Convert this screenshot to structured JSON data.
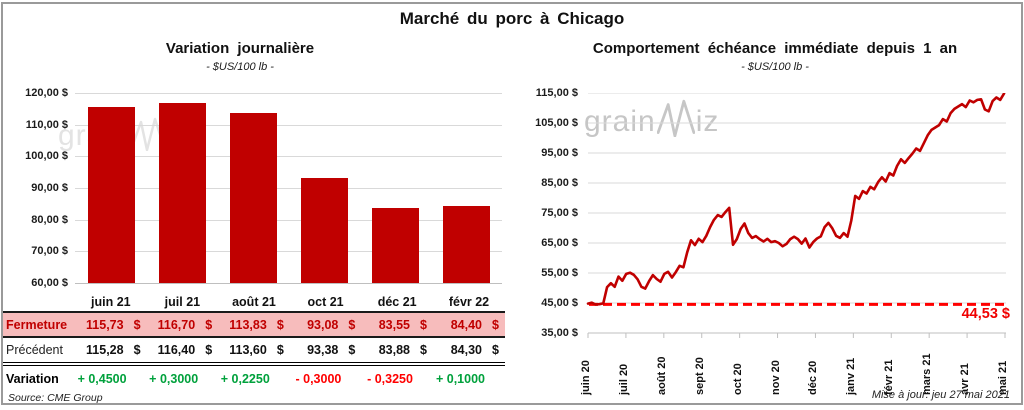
{
  "title": "Marché du porc à Chicago",
  "source": "Source: CME Group",
  "updated": "Mise à jour: jeu 27 mai 2021",
  "watermark": {
    "part1": "grain",
    "part2": "iz"
  },
  "colors": {
    "bar": "#c00000",
    "line": "#c00000",
    "reference_dash": "#ff0000",
    "reference_label": "#f00000",
    "positive": "#00a13c",
    "negative": "#ff0000",
    "fermeture_bg": "#f7bcbc",
    "fermeture_text": "#c00000",
    "grid": "#d9d9d9",
    "axis": "#bfbfbf",
    "frame": "#9a9a9a"
  },
  "chart_data": [
    {
      "type": "bar",
      "title": "Variation journalière",
      "subtitle": "- $US/100 lb -",
      "categories": [
        "juin 21",
        "juil 21",
        "août 21",
        "oct 21",
        "déc 21",
        "févr 22"
      ],
      "values": [
        115.73,
        116.7,
        113.83,
        93.08,
        83.55,
        84.4
      ],
      "ylim": [
        60,
        120
      ],
      "y_ticks": [
        "120,00 $",
        "110,00 $",
        "100,00 $",
        "90,00 $",
        "80,00 $",
        "70,00 $",
        "60,00 $"
      ],
      "grid": true,
      "legend": false
    },
    {
      "type": "line",
      "title": "Comportement échéance immédiate depuis 1 an",
      "subtitle": "- $US/100 lb -",
      "x_ticks": [
        "juin 20",
        "juil 20",
        "août 20",
        "sept 20",
        "oct 20",
        "nov 20",
        "déc 20",
        "janv 21",
        "févr 21",
        "mars 21",
        "avr 21",
        "mai 21"
      ],
      "values": [
        44.8,
        45.1,
        44.5,
        44.6,
        44.9,
        50.3,
        51.6,
        50.4,
        53.8,
        52.4,
        54.7,
        55.1,
        54.4,
        52.9,
        50.4,
        49.8,
        52.3,
        54.3,
        53.0,
        52.1,
        54.7,
        55.4,
        53.5,
        55.3,
        57.4,
        56.9,
        61.9,
        65.9,
        64.3,
        66.4,
        65.3,
        67.4,
        70.3,
        72.7,
        74.3,
        73.7,
        75.3,
        76.7,
        64.4,
        66.3,
        69.7,
        71.5,
        68.3,
        66.7,
        67.3,
        66.3,
        65.5,
        66.4,
        65.3,
        65.6,
        65.0,
        63.9,
        64.7,
        66.3,
        67.1,
        66.3,
        64.8,
        66.5,
        63.5,
        65.3,
        66.5,
        67.2,
        70.3,
        71.7,
        69.9,
        67.4,
        66.7,
        68.3,
        67.1,
        72.5,
        80.7,
        79.7,
        82.3,
        81.5,
        83.7,
        82.9,
        85.3,
        86.9,
        85.5,
        88.3,
        87.5,
        90.7,
        92.9,
        91.7,
        93.3,
        94.8,
        96.5,
        95.7,
        98.3,
        100.9,
        102.7,
        103.5,
        104.3,
        106.3,
        105.5,
        108.3,
        109.7,
        110.5,
        111.3,
        110.3,
        112.5,
        111.9,
        112.7,
        112.9,
        109.5,
        108.9,
        112.3,
        113.5,
        112.7,
        114.8
      ],
      "ylim": [
        35,
        115
      ],
      "y_ticks": [
        "115,00 $",
        "105,00 $",
        "95,00 $",
        "85,00 $",
        "75,00 $",
        "65,00 $",
        "55,00 $",
        "45,00 $",
        "35,00 $"
      ],
      "reference_line": {
        "value": 44.53,
        "label": "44,53 $"
      },
      "grid": true,
      "legend": false
    },
    {
      "type": "table",
      "columns": [
        "juin 21",
        "juil 21",
        "août 21",
        "oct 21",
        "déc 21",
        "févr 22"
      ],
      "rows": [
        {
          "label": "Fermeture",
          "style": "fermeture",
          "currency": "$",
          "values": [
            "115,73",
            "116,70",
            "113,83",
            "93,08",
            "83,55",
            "84,40"
          ]
        },
        {
          "label": "Précédent",
          "style": "precedent",
          "currency": "$",
          "values": [
            "115,28",
            "116,40",
            "113,60",
            "93,38",
            "83,88",
            "84,30"
          ]
        },
        {
          "label": "Variation",
          "style": "variation",
          "values": [
            "+ 0,4500",
            "+ 0,3000",
            "+ 0,2250",
            "- 0,3000",
            "- 0,3250",
            "+ 0,1000"
          ],
          "signs": [
            "pos",
            "pos",
            "pos",
            "neg",
            "neg",
            "pos"
          ]
        }
      ]
    }
  ]
}
